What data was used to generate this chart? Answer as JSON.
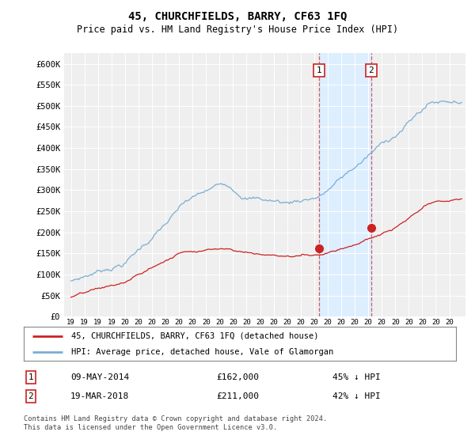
{
  "title": "45, CHURCHFIELDS, BARRY, CF63 1FQ",
  "subtitle": "Price paid vs. HM Land Registry's House Price Index (HPI)",
  "ylim": [
    0,
    625000
  ],
  "xlim_start": 1995.5,
  "xlim_end": 2025.2,
  "yticks": [
    0,
    50000,
    100000,
    150000,
    200000,
    250000,
    300000,
    350000,
    400000,
    450000,
    500000,
    550000,
    600000
  ],
  "ytick_labels": [
    "£0",
    "£50K",
    "£100K",
    "£150K",
    "£200K",
    "£250K",
    "£300K",
    "£350K",
    "£400K",
    "£450K",
    "£500K",
    "£550K",
    "£600K"
  ],
  "hpi_color": "#7aaed4",
  "price_color": "#cc2222",
  "sale1_x": 2014.36,
  "sale1_y": 162000,
  "sale2_x": 2018.22,
  "sale2_y": 211000,
  "vline1_x": 2014.36,
  "vline2_x": 2018.22,
  "vline_color": "#cc4444",
  "highlight_color": "#ddeeff",
  "legend_line1": "45, CHURCHFIELDS, BARRY, CF63 1FQ (detached house)",
  "legend_line2": "HPI: Average price, detached house, Vale of Glamorgan",
  "table_row1": [
    "1",
    "09-MAY-2014",
    "£162,000",
    "45% ↓ HPI"
  ],
  "table_row2": [
    "2",
    "19-MAR-2018",
    "£211,000",
    "42% ↓ HPI"
  ],
  "footnote": "Contains HM Land Registry data © Crown copyright and database right 2024.\nThis data is licensed under the Open Government Licence v3.0.",
  "background_color": "#ffffff",
  "plot_bg_color": "#efefef"
}
